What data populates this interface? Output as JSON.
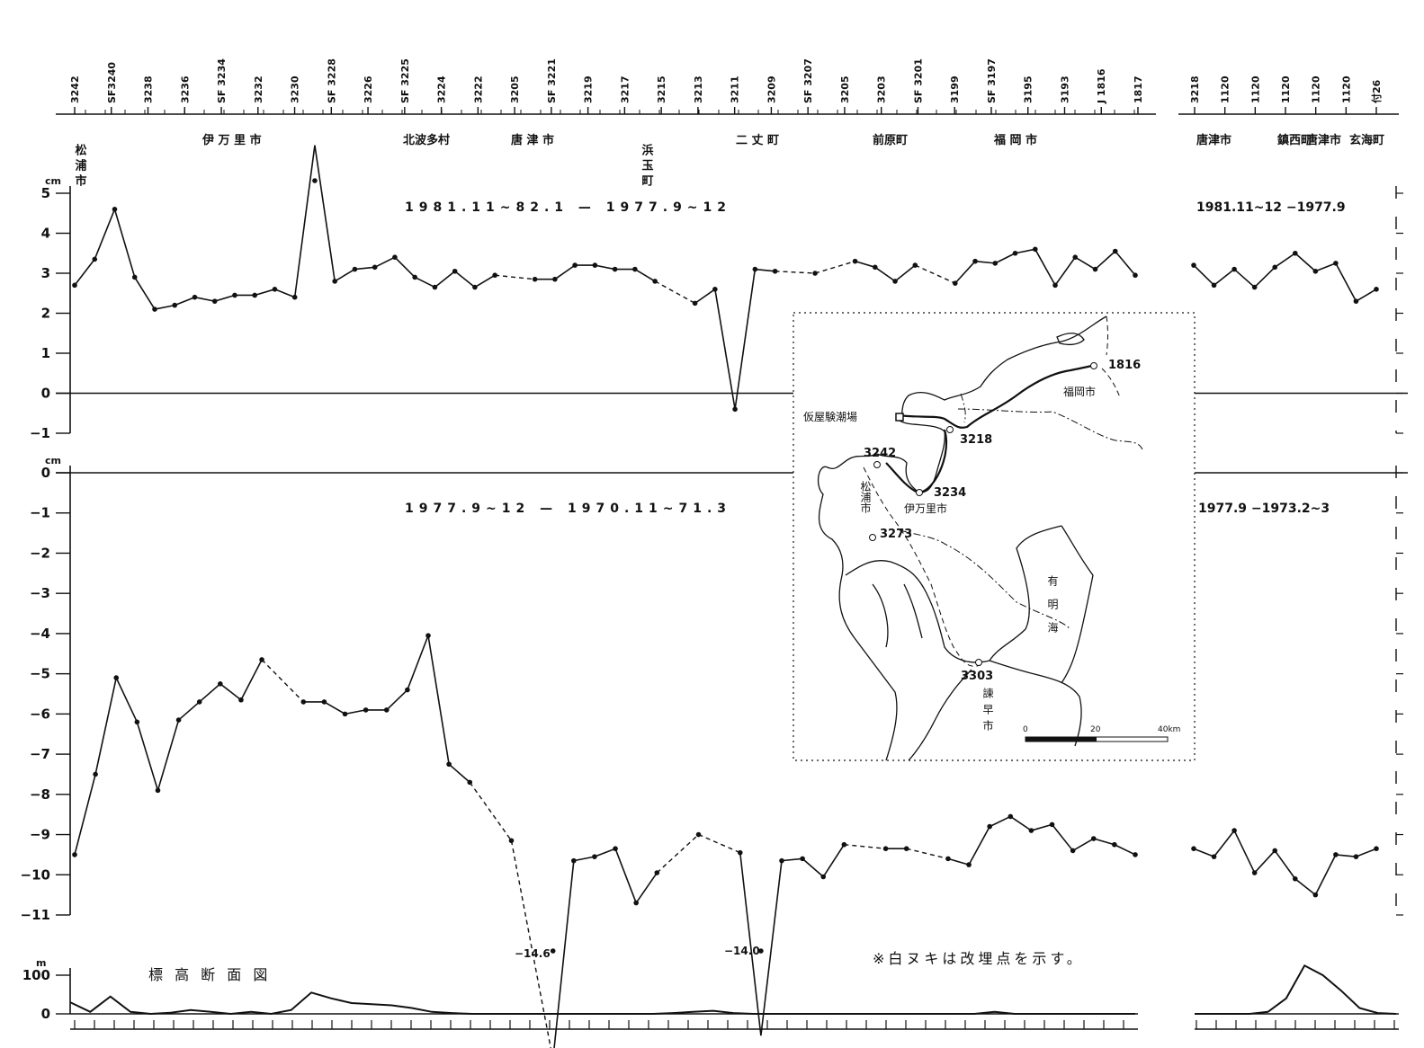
{
  "colors": {
    "line": "#111111",
    "background": "#ffffff"
  },
  "benchmarks": {
    "main": [
      {
        "upper": "3242",
        "lower": ""
      },
      {
        "upper": "",
        "lower": "SF3240"
      },
      {
        "upper": "3238",
        "lower": ""
      },
      {
        "upper": "3236",
        "lower": ""
      },
      {
        "upper": "3234",
        "lower": "SF"
      },
      {
        "upper": "3232",
        "lower": ""
      },
      {
        "upper": "3230",
        "lower": ""
      },
      {
        "upper": "3228",
        "lower": "SF"
      },
      {
        "upper": "3226",
        "lower": ""
      },
      {
        "upper": "3225",
        "lower": "SF"
      },
      {
        "upper": "3224",
        "lower": ""
      },
      {
        "upper": "3222",
        "lower": ""
      },
      {
        "upper": "3205",
        "lower": ""
      },
      {
        "upper": "3221",
        "lower": "SF"
      },
      {
        "upper": "3219",
        "lower": ""
      },
      {
        "upper": "3217",
        "lower": ""
      },
      {
        "upper": "3215",
        "lower": ""
      },
      {
        "upper": "3213",
        "lower": ""
      },
      {
        "upper": "3211",
        "lower": ""
      },
      {
        "upper": "3209",
        "lower": ""
      },
      {
        "upper": "3207",
        "lower": "SF"
      },
      {
        "upper": "3205",
        "lower": ""
      },
      {
        "upper": "3203",
        "lower": ""
      },
      {
        "upper": "3201",
        "lower": "SF"
      },
      {
        "upper": "3199",
        "lower": ""
      },
      {
        "upper": "3197",
        "lower": "SF"
      },
      {
        "upper": "3195",
        "lower": ""
      },
      {
        "upper": "3193",
        "lower": ""
      },
      {
        "upper": "1816",
        "lower": "J"
      },
      {
        "upper": "1817",
        "lower": ""
      }
    ],
    "side": [
      {
        "upper": "3218",
        "lower": ""
      },
      {
        "upper": "1120",
        "lower": ""
      },
      {
        "upper": "1120",
        "lower": ""
      },
      {
        "upper": "1120",
        "lower": ""
      },
      {
        "upper": "1120",
        "lower": ""
      },
      {
        "upper": "1120",
        "lower": ""
      },
      {
        "upper": "付26",
        "lower": ""
      }
    ]
  },
  "places": {
    "main": [
      "松浦市",
      "伊 万 里 市",
      "北波多村",
      "唐 津 市",
      "浜玉町",
      "二 丈 町",
      "前原町",
      "福 岡 市"
    ],
    "side": [
      "唐津市",
      "鎮西町",
      "唐津市",
      "玄海町"
    ]
  },
  "chart_data": [
    {
      "type": "line",
      "title": "1981.11~82.1 — 1977.9~12",
      "side_title": "1981.11~12 −1977.9",
      "ylabel": "cm",
      "ylim": [
        -1,
        5
      ],
      "yticks": [
        "5",
        "4",
        "3",
        "2",
        "1",
        "0",
        "−1"
      ],
      "main_values": [
        2.7,
        3.35,
        4.6,
        2.9,
        2.1,
        2.2,
        2.4,
        2.3,
        2.45,
        2.45,
        2.6,
        2.4,
        6.2,
        2.8,
        3.1,
        3.15,
        3.4,
        2.9,
        2.65,
        3.05,
        2.65,
        2.95,
        null,
        2.85,
        2.85,
        3.2,
        3.2,
        3.1,
        3.1,
        2.8,
        null,
        2.25,
        2.6,
        -0.4,
        3.1,
        3.05,
        null,
        3.0,
        null,
        3.3,
        3.15,
        2.8,
        3.2,
        null,
        2.75,
        3.3,
        3.25,
        3.5,
        3.6,
        2.7,
        3.4,
        3.1,
        3.55,
        2.95
      ],
      "side_values": [
        3.2,
        2.7,
        3.1,
        2.65,
        3.15,
        3.5,
        3.05,
        3.25,
        2.3,
        2.6
      ]
    },
    {
      "type": "line",
      "title": "1977.9~12 — 1970.11~71.3",
      "side_title": "1977.9 −1973.2~3",
      "ylabel": "cm",
      "ylim": [
        -11,
        0
      ],
      "yticks": [
        "0",
        "−1",
        "−2",
        "−3",
        "−4",
        "−5",
        "−6",
        "−7",
        "−8",
        "−9",
        "−10",
        "−11"
      ],
      "main_values": [
        -9.5,
        -7.5,
        -5.1,
        -6.2,
        -7.9,
        -6.15,
        -5.7,
        -5.25,
        -5.65,
        -4.65,
        null,
        -5.7,
        -5.7,
        -6.0,
        -5.9,
        -5.9,
        -5.4,
        -4.05,
        -7.25,
        -7.7,
        null,
        -9.15,
        null,
        -14.6,
        -9.65,
        -9.55,
        -9.35,
        -10.7,
        -9.95,
        null,
        -9.0,
        null,
        -9.45,
        -14.0,
        -9.65,
        -9.6,
        -10.05,
        -9.25,
        null,
        -9.35,
        -9.35,
        null,
        -9.6,
        -9.75,
        -8.8,
        -8.55,
        -8.9,
        -8.75,
        -9.4,
        -9.1,
        -9.25,
        -9.5
      ],
      "side_values": [
        -9.35,
        -9.55,
        -8.9,
        -9.95,
        -9.4,
        -10.1,
        -10.5,
        -9.5,
        -9.55,
        -9.35
      ],
      "annotations": [
        "−14.6",
        "−14.0"
      ]
    },
    {
      "type": "area",
      "title": "標 高 断 面 図",
      "ylabel": "m",
      "ylim": [
        0,
        100
      ],
      "yticks": [
        "100",
        "0"
      ],
      "main_values": [
        30,
        5,
        45,
        5,
        0,
        3,
        10,
        5,
        0,
        5,
        0,
        10,
        55,
        40,
        28,
        25,
        22,
        15,
        5,
        2,
        0,
        0,
        0,
        0,
        0,
        0,
        0,
        0,
        0,
        0,
        2,
        5,
        8,
        2,
        0,
        0,
        0,
        0,
        0,
        0,
        0,
        0,
        0,
        0,
        0,
        0,
        5,
        0,
        0,
        0,
        0,
        0,
        0,
        0
      ],
      "side_values": [
        0,
        0,
        0,
        0,
        5,
        40,
        125,
        100,
        60,
        15,
        2,
        0
      ]
    }
  ],
  "map": {
    "labels": {
      "test_site": "仮屋験潮場",
      "fukuoka": "福岡市",
      "bm1816": "1816",
      "bm3218": "3218",
      "bm3242": "3242",
      "matsuura": "松浦市",
      "imari": "伊万里市",
      "bm3234": "3234",
      "bm3273": "3273",
      "ariake": "有明海",
      "bm3303": "3303",
      "isahaya": "諫早市",
      "scale_0": "0",
      "scale_20": "20",
      "scale_40": "40km"
    }
  },
  "note": "※白ヌキは改埋点を示す。"
}
